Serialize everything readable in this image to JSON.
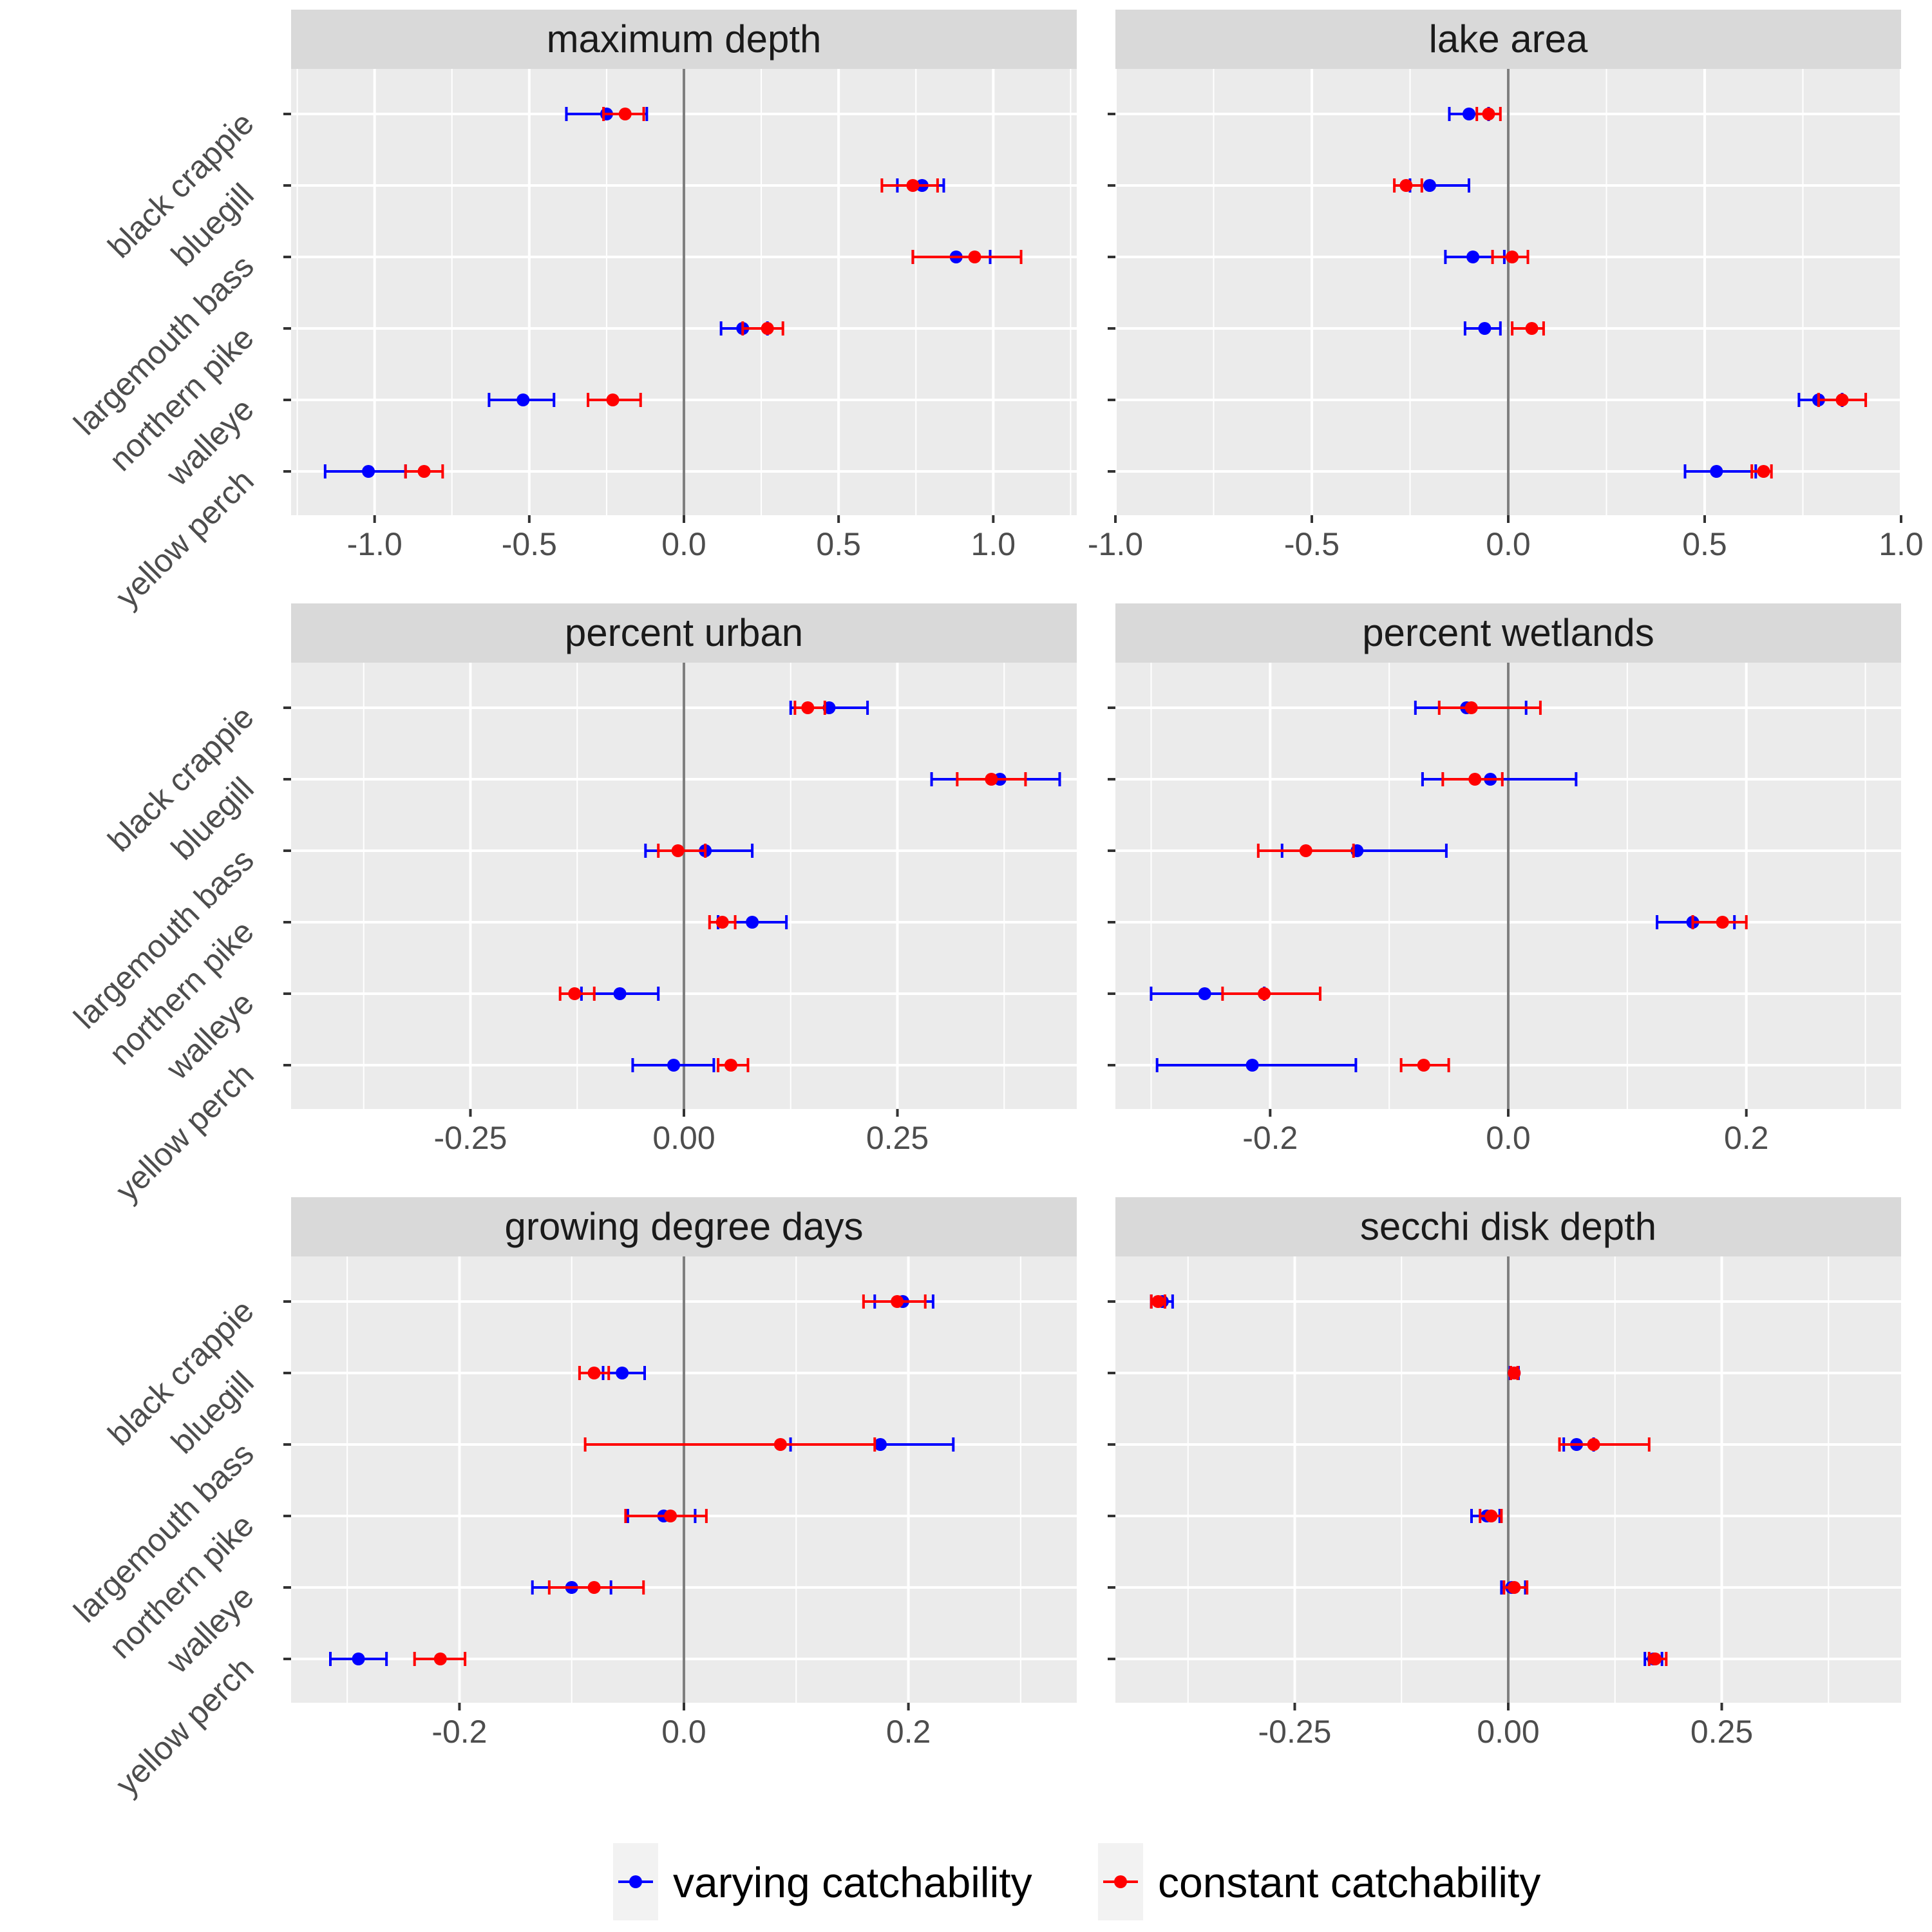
{
  "chart_data": {
    "type": "scatter",
    "species": [
      "black crappie",
      "bluegill",
      "largemouth bass",
      "northern pike",
      "walleye",
      "yellow perch"
    ],
    "legend": {
      "placement": "bottom",
      "entries": [
        {
          "key": "varying",
          "label": "varying catchability",
          "color": "#0000ff"
        },
        {
          "key": "constant",
          "label": "constant catchability",
          "color": "#ff0000"
        }
      ]
    },
    "colors": {
      "panel_bg": "#ebebeb",
      "strip_bg": "#d9d9d9",
      "grid": "#ffffff",
      "zero_line": "#7f7f7f"
    },
    "panels": [
      {
        "title": "maximum depth",
        "xlim": [
          -1.27,
          1.27
        ],
        "xticks": [
          -1.0,
          -0.5,
          0.0,
          0.5,
          1.0
        ],
        "xtick_labels": [
          "-1.0",
          "-0.5",
          "0.0",
          "0.5",
          "1.0"
        ],
        "varying": [
          {
            "est": -0.25,
            "lo": -0.38,
            "hi": -0.12
          },
          {
            "est": 0.77,
            "lo": 0.69,
            "hi": 0.84
          },
          {
            "est": 0.88,
            "lo": 0.74,
            "hi": 0.99
          },
          {
            "est": 0.19,
            "lo": 0.12,
            "hi": 0.27
          },
          {
            "est": -0.52,
            "lo": -0.63,
            "hi": -0.42
          },
          {
            "est": -1.02,
            "lo": -1.16,
            "hi": -0.9
          }
        ],
        "constant": [
          {
            "est": -0.19,
            "lo": -0.26,
            "hi": -0.13
          },
          {
            "est": 0.74,
            "lo": 0.64,
            "hi": 0.82
          },
          {
            "est": 0.94,
            "lo": 0.74,
            "hi": 1.09
          },
          {
            "est": 0.27,
            "lo": 0.19,
            "hi": 0.32
          },
          {
            "est": -0.23,
            "lo": -0.31,
            "hi": -0.14
          },
          {
            "est": -0.84,
            "lo": -0.9,
            "hi": -0.78
          }
        ]
      },
      {
        "title": "lake area",
        "xlim": [
          -1.0,
          1.0
        ],
        "xticks": [
          -1.0,
          -0.5,
          0.0,
          0.5,
          1.0
        ],
        "xtick_labels": [
          "-1.0",
          "-0.5",
          "0.0",
          "0.5",
          "1.0"
        ],
        "varying": [
          {
            "est": -0.1,
            "lo": -0.15,
            "hi": -0.05
          },
          {
            "est": -0.2,
            "lo": -0.25,
            "hi": -0.1
          },
          {
            "est": -0.09,
            "lo": -0.16,
            "hi": -0.01
          },
          {
            "est": -0.06,
            "lo": -0.11,
            "hi": -0.02
          },
          {
            "est": 0.79,
            "lo": 0.74,
            "hi": 0.85
          },
          {
            "est": 0.53,
            "lo": 0.45,
            "hi": 0.63
          }
        ],
        "constant": [
          {
            "est": -0.05,
            "lo": -0.08,
            "hi": -0.02
          },
          {
            "est": -0.26,
            "lo": -0.29,
            "hi": -0.22
          },
          {
            "est": 0.01,
            "lo": -0.04,
            "hi": 0.05
          },
          {
            "est": 0.06,
            "lo": 0.01,
            "hi": 0.09
          },
          {
            "est": 0.85,
            "lo": 0.79,
            "hi": 0.91
          },
          {
            "est": 0.65,
            "lo": 0.62,
            "hi": 0.67
          }
        ]
      },
      {
        "title": "percent urban",
        "xlim": [
          -0.46,
          0.46
        ],
        "xticks": [
          -0.25,
          0.0,
          0.25
        ],
        "xtick_labels": [
          "-0.25",
          "0.00",
          "0.25"
        ],
        "varying": [
          {
            "est": 0.17,
            "lo": 0.125,
            "hi": 0.215
          },
          {
            "est": 0.37,
            "lo": 0.29,
            "hi": 0.44
          },
          {
            "est": 0.025,
            "lo": -0.045,
            "hi": 0.08
          },
          {
            "est": 0.08,
            "lo": 0.04,
            "hi": 0.12
          },
          {
            "est": -0.075,
            "lo": -0.12,
            "hi": -0.03
          },
          {
            "est": -0.012,
            "lo": -0.06,
            "hi": 0.035
          }
        ],
        "constant": [
          {
            "est": 0.145,
            "lo": 0.13,
            "hi": 0.165
          },
          {
            "est": 0.36,
            "lo": 0.32,
            "hi": 0.4
          },
          {
            "est": -0.007,
            "lo": -0.03,
            "hi": 0.025
          },
          {
            "est": 0.045,
            "lo": 0.03,
            "hi": 0.06
          },
          {
            "est": -0.128,
            "lo": -0.145,
            "hi": -0.105
          },
          {
            "est": 0.055,
            "lo": 0.04,
            "hi": 0.075
          }
        ]
      },
      {
        "title": "percent wetlands",
        "xlim": [
          -0.33,
          0.33
        ],
        "xticks": [
          -0.2,
          0.0,
          0.2
        ],
        "xtick_labels": [
          "-0.2",
          "0.0",
          "0.2"
        ],
        "varying": [
          {
            "est": -0.035,
            "lo": -0.078,
            "hi": 0.015
          },
          {
            "est": -0.015,
            "lo": -0.072,
            "hi": 0.057
          },
          {
            "est": -0.127,
            "lo": -0.19,
            "hi": -0.052
          },
          {
            "est": 0.155,
            "lo": 0.125,
            "hi": 0.19
          },
          {
            "est": -0.255,
            "lo": -0.3,
            "hi": -0.205
          },
          {
            "est": -0.215,
            "lo": -0.295,
            "hi": -0.128
          }
        ],
        "constant": [
          {
            "est": -0.031,
            "lo": -0.058,
            "hi": 0.027
          },
          {
            "est": -0.028,
            "lo": -0.055,
            "hi": -0.005
          },
          {
            "est": -0.17,
            "lo": -0.21,
            "hi": -0.13
          },
          {
            "est": 0.18,
            "lo": 0.155,
            "hi": 0.2
          },
          {
            "est": -0.205,
            "lo": -0.24,
            "hi": -0.158
          },
          {
            "est": -0.071,
            "lo": -0.09,
            "hi": -0.05
          }
        ]
      },
      {
        "title": "growing degree days",
        "xlim": [
          -0.35,
          0.35
        ],
        "xticks": [
          -0.2,
          0.0,
          0.2
        ],
        "xtick_labels": [
          "-0.2",
          "0.0",
          "0.2"
        ],
        "varying": [
          {
            "est": 0.195,
            "lo": 0.17,
            "hi": 0.222
          },
          {
            "est": -0.055,
            "lo": -0.072,
            "hi": -0.035
          },
          {
            "est": 0.175,
            "lo": 0.095,
            "hi": 0.24
          },
          {
            "est": -0.018,
            "lo": -0.05,
            "hi": 0.01
          },
          {
            "est": -0.1,
            "lo": -0.135,
            "hi": -0.065
          },
          {
            "est": -0.29,
            "lo": -0.315,
            "hi": -0.265
          }
        ],
        "constant": [
          {
            "est": 0.19,
            "lo": 0.16,
            "hi": 0.215
          },
          {
            "est": -0.08,
            "lo": -0.093,
            "hi": -0.067
          },
          {
            "est": 0.086,
            "lo": -0.088,
            "hi": 0.17
          },
          {
            "est": -0.012,
            "lo": -0.052,
            "hi": 0.02
          },
          {
            "est": -0.08,
            "lo": -0.12,
            "hi": -0.036
          },
          {
            "est": -0.217,
            "lo": -0.24,
            "hi": -0.195
          }
        ]
      },
      {
        "title": "secchi disk depth",
        "xlim": [
          -0.46,
          0.46
        ],
        "xticks": [
          -0.25,
          0.0,
          0.25
        ],
        "xtick_labels": [
          "-0.25",
          "0.00",
          "0.25"
        ],
        "varying": [
          {
            "est": -0.405,
            "lo": -0.418,
            "hi": -0.393
          },
          {
            "est": 0.007,
            "lo": 0.002,
            "hi": 0.012
          },
          {
            "est": 0.08,
            "lo": 0.065,
            "hi": 0.1
          },
          {
            "est": -0.025,
            "lo": -0.043,
            "hi": -0.01
          },
          {
            "est": 0.004,
            "lo": -0.008,
            "hi": 0.02
          },
          {
            "est": 0.17,
            "lo": 0.16,
            "hi": 0.18
          }
        ],
        "constant": [
          {
            "est": -0.41,
            "lo": -0.418,
            "hi": -0.402
          },
          {
            "est": 0.007,
            "lo": 0.003,
            "hi": 0.011
          },
          {
            "est": 0.1,
            "lo": 0.06,
            "hi": 0.165
          },
          {
            "est": -0.02,
            "lo": -0.033,
            "hi": -0.008
          },
          {
            "est": 0.007,
            "lo": -0.005,
            "hi": 0.022
          },
          {
            "est": 0.172,
            "lo": 0.165,
            "hi": 0.185
          }
        ]
      }
    ]
  }
}
